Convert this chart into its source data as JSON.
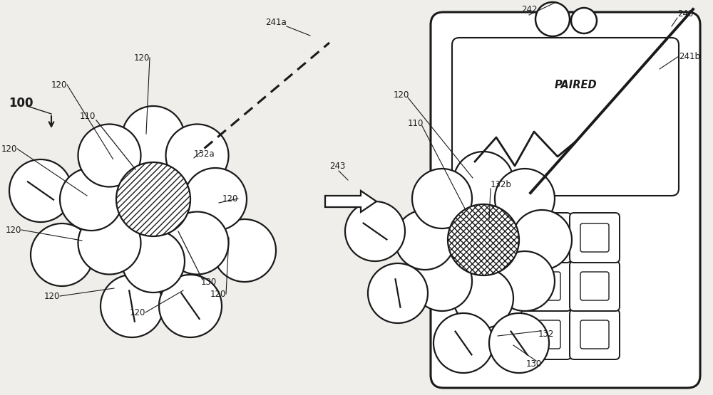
{
  "bg": "#f0eeea",
  "black": "#1a1a1a",
  "white": "#ffffff",
  "labels": {
    "100": "100",
    "110": "110",
    "120": "120",
    "130": "130",
    "132": "132",
    "132a": "132a",
    "132b": "132b",
    "240": "240",
    "241a": "241a",
    "241b": "241b",
    "242": "242",
    "243": "243",
    "paired": "PAIRED"
  }
}
